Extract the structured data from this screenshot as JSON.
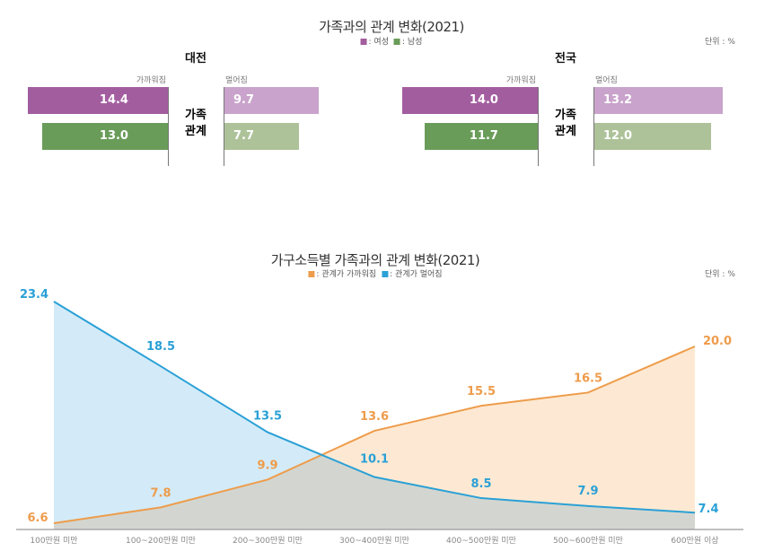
{
  "chart_data": [
    {
      "type": "bar",
      "title": "가족과의 관계 변화(2021)",
      "unit": "단위 : %",
      "legend": [
        {
          "name": "여성",
          "label": ": 여성",
          "color": "#a25d9f"
        },
        {
          "name": "남성",
          "label": ": 남성",
          "color": "#6a9c59"
        }
      ],
      "row_label": "가족 관계",
      "side_labels": {
        "closer": "가까워짐",
        "farther": "멀어짐"
      },
      "panels": [
        {
          "region": "대전",
          "closer": {
            "여성": 14.4,
            "남성": 13.0
          },
          "farther": {
            "여성": 9.7,
            "남성": 7.7
          }
        },
        {
          "region": "전국",
          "closer": {
            "여성": 14.0,
            "남성": 11.7
          },
          "farther": {
            "여성": 13.2,
            "남성": 12.0
          }
        }
      ],
      "colors": {
        "closer_f": "#a25d9f",
        "closer_m": "#6a9c59",
        "farther_f": "#c9a3cb",
        "farther_m": "#aec29a"
      }
    },
    {
      "type": "area",
      "title": "가구소득별 가족과의 관계 변화(2021)",
      "unit": "단위 : %",
      "categories": [
        "100만원 미만",
        "100~200만원 미만",
        "200~300만원 미만",
        "300~400만원 미만",
        "400~500만원 미만",
        "500~600만원 미만",
        "600만원 이상"
      ],
      "series": [
        {
          "name": "관계가 가까워짐",
          "label": ": 관계가 가까워짐",
          "color": "#ee9c4b",
          "fill": "#fde9d3",
          "values": [
            6.6,
            7.8,
            9.9,
            13.6,
            15.5,
            16.5,
            20.0
          ]
        },
        {
          "name": "관계가 멀어짐",
          "label": ": 관계가 멀어짐",
          "color": "#2aa0d6",
          "fill": "#d3ebf8",
          "values": [
            23.4,
            18.5,
            13.5,
            10.1,
            8.5,
            7.9,
            7.4
          ]
        }
      ],
      "overlap_fill": "#d3d6d0",
      "grid": false
    }
  ]
}
